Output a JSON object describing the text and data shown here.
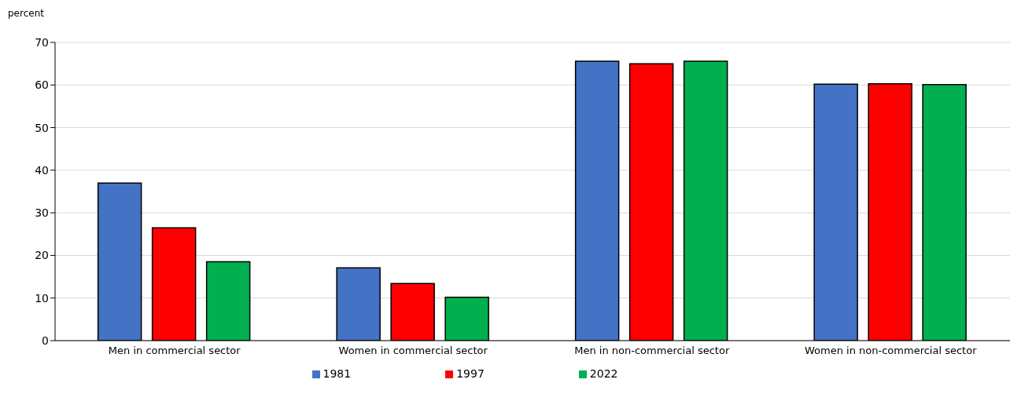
{
  "chart_data": {
    "type": "bar",
    "ylabel": "percent",
    "categories": [
      "Men in commercial sector",
      "Women in commercial sector",
      "Men in non-commercial sector",
      "Women in non-commercial sector"
    ],
    "series": [
      {
        "name": "1981",
        "color": "#4472c4",
        "values": [
          37.0,
          17.1,
          65.6,
          60.2
        ]
      },
      {
        "name": "1997",
        "color": "#ff0000",
        "values": [
          26.5,
          13.4,
          65.0,
          60.3
        ]
      },
      {
        "name": "2022",
        "color": "#00b050",
        "values": [
          18.5,
          10.2,
          65.6,
          60.1
        ]
      }
    ],
    "ylim": [
      0,
      70
    ],
    "yticks": [
      0,
      10,
      20,
      30,
      40,
      50,
      60,
      70
    ],
    "grid": "y",
    "legend": "bottom"
  }
}
